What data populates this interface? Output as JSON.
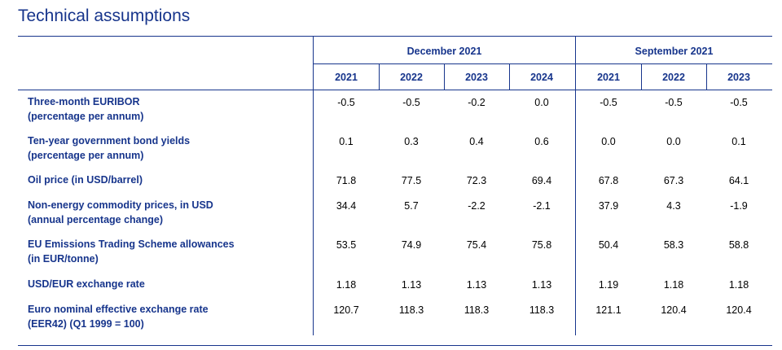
{
  "title": "Technical assumptions",
  "groups": [
    {
      "label": "December 2021",
      "years": [
        "2021",
        "2022",
        "2023",
        "2024"
      ]
    },
    {
      "label": "September 2021",
      "years": [
        "2021",
        "2022",
        "2023"
      ]
    }
  ],
  "rows": [
    {
      "label": [
        "Three-month EURIBOR",
        "(percentage per annum)"
      ],
      "values": [
        "-0.5",
        "-0.5",
        "-0.2",
        "0.0",
        "-0.5",
        "-0.5",
        "-0.5"
      ]
    },
    {
      "label": [
        "Ten-year government bond yields",
        "(percentage per annum)"
      ],
      "values": [
        "0.1",
        "0.3",
        "0.4",
        "0.6",
        "0.0",
        "0.0",
        "0.1"
      ]
    },
    {
      "label": [
        "Oil price (in USD/barrel)"
      ],
      "values": [
        "71.8",
        "77.5",
        "72.3",
        "69.4",
        "67.8",
        "67.3",
        "64.1"
      ]
    },
    {
      "label": [
        "Non-energy commodity prices, in USD",
        "(annual percentage change)"
      ],
      "values": [
        "34.4",
        "5.7",
        "-2.2",
        "-2.1",
        "37.9",
        "4.3",
        "-1.9"
      ]
    },
    {
      "label": [
        "EU Emissions Trading Scheme allowances",
        "(in EUR/tonne)"
      ],
      "values": [
        "53.5",
        "74.9",
        "75.4",
        "75.8",
        "50.4",
        "58.3",
        "58.8"
      ]
    },
    {
      "label": [
        "USD/EUR exchange rate"
      ],
      "values": [
        "1.18",
        "1.13",
        "1.13",
        "1.13",
        "1.19",
        "1.18",
        "1.18"
      ]
    },
    {
      "label": [
        "Euro nominal effective exchange rate",
        "(EER42) (Q1 1999 = 100)"
      ],
      "values": [
        "120.7",
        "118.3",
        "118.3",
        "118.3",
        "121.1",
        "120.4",
        "120.4"
      ]
    }
  ],
  "colors": {
    "heading": "#17358c",
    "rule": "#17358c",
    "value_text": "#000000"
  }
}
